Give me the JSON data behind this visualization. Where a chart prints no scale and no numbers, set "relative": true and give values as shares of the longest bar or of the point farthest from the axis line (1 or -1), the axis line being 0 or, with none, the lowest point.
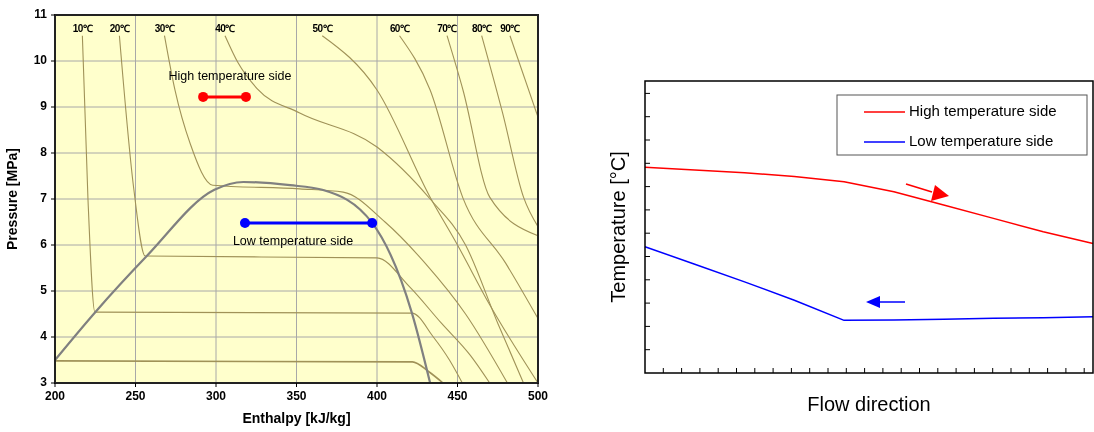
{
  "chart_data": [
    {
      "type": "line",
      "xlabel": "Enthalpy  [kJ/kg]",
      "ylabel": "Pressure  [MPa]",
      "xlim": [
        200,
        500
      ],
      "ylim": [
        3,
        11
      ],
      "xticks": [
        200,
        250,
        300,
        350,
        400,
        450,
        500
      ],
      "yticks": [
        3,
        4,
        5,
        6,
        7,
        8,
        9,
        10,
        11
      ],
      "grid": true,
      "legend": false,
      "marker": "none",
      "annotations": [
        "High temperature side",
        "Low temperature side"
      ],
      "series": [
        {
          "color": "#a09258",
          "x": [
            200,
            422,
            432,
            441
          ],
          "values": [
            3.48,
            3.46,
            3.25,
            3
          ]
        },
        {
          "name": "10℃",
          "color": "#a09258",
          "x": [
            217,
            220.5,
            224.8,
            421.7,
            435,
            445,
            453
          ],
          "values": [
            10.55,
            6.98,
            4.54,
            4.52,
            4.0,
            3.5,
            3
          ]
        },
        {
          "name": "20℃",
          "color": "#a09258",
          "x": [
            240,
            249,
            256,
            400,
            420,
            440,
            458,
            470
          ],
          "values": [
            10.55,
            7.2,
            5.76,
            5.72,
            5.1,
            4.3,
            3.6,
            3
          ]
        },
        {
          "name": "30℃",
          "color": "#a09258",
          "x": [
            268,
            274.5,
            284,
            298,
            352,
            379,
            405,
            430,
            455,
            481
          ],
          "values": [
            10.55,
            9.37,
            8.2,
            7.3,
            7.22,
            7.15,
            6.5,
            5.6,
            4.5,
            3
          ]
        },
        {
          "name": "40℃",
          "color": "#a09258",
          "x": [
            305.6,
            313.7,
            325.5,
            352,
            400,
            433,
            455,
            475,
            491
          ],
          "values": [
            10.55,
            9.96,
            9.4,
            8.87,
            8.13,
            7.0,
            6.0,
            4.3,
            3
          ]
        },
        {
          "name": "50℃",
          "color": "#a09258",
          "x": [
            366,
            400,
            433,
            450,
            470,
            500
          ],
          "values": [
            10.55,
            9.37,
            7.04,
            6.0,
            4.7,
            3
          ]
        },
        {
          "name": "60℃",
          "color": "#a09258",
          "x": [
            414,
            433,
            453.4,
            480,
            500
          ],
          "values": [
            10.55,
            9.37,
            7.02,
            5.6,
            4.4
          ]
        },
        {
          "name": "70℃",
          "color": "#a09258",
          "x": [
            443.5,
            453.4,
            470,
            500
          ],
          "values": [
            10.55,
            9.37,
            7.04,
            6.2
          ]
        },
        {
          "name": "80℃",
          "color": "#a09258",
          "x": [
            465,
            478,
            491,
            500
          ],
          "values": [
            10.55,
            8.87,
            7.04,
            6.4
          ]
        },
        {
          "name": "90℃",
          "color": "#a09258",
          "x": [
            482.6,
            500
          ],
          "values": [
            10.55,
            8.78
          ]
        },
        {
          "color": "#808080",
          "x": [
            200,
            225,
            257,
            299,
            317,
            346,
            366,
            397,
            421.7,
            433
          ],
          "values": [
            3.5,
            4.54,
            5.76,
            7.2,
            7.37,
            7.3,
            7.2,
            6.48,
            4.52,
            3
          ]
        },
        {
          "color": "#ff0000",
          "marker": "circle",
          "x": [
            292,
            318.6
          ],
          "values": [
            9.22,
            9.22
          ]
        },
        {
          "color": "#0000ff",
          "marker": "circle",
          "x": [
            318,
            397
          ],
          "values": [
            6.48,
            6.48
          ]
        }
      ]
    },
    {
      "type": "line",
      "relative": true,
      "xlabel": "Flow direction",
      "ylabel": "Temperature [°C]",
      "legend": "top right",
      "categories": [
        null,
        null,
        null,
        null,
        null,
        null,
        null,
        null,
        null,
        null
      ],
      "series": [
        {
          "name": "High temperature side",
          "color": "#ff0000",
          "values": [
            1,
            0.987,
            0.974,
            0.955,
            0.93,
            0.881,
            0.817,
            0.752,
            0.687,
            0.63
          ]
        },
        {
          "name": "Low temperature side",
          "color": "#0000ff",
          "values": [
            0.614,
            0.529,
            0.443,
            0.354,
            0.256,
            0.258,
            0.261,
            0.266,
            0.269,
            0.273
          ]
        }
      ]
    }
  ]
}
